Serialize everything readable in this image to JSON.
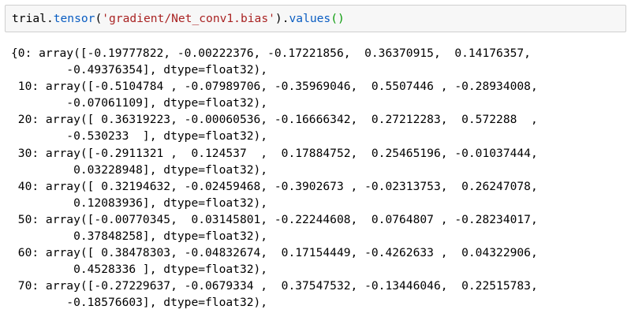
{
  "colors": {
    "page_bg": "#ffffff",
    "cell_bg": "#f7f7f7",
    "cell_border": "#cfcfcf",
    "code_text": "#000000",
    "code_blue": "#0a5dc2",
    "code_string_red": "#a92323",
    "code_paren_green": "#0c9c0c",
    "output_text": "#000000"
  },
  "code_cell": {
    "full_text": "trial.tensor('gradient/Net_conv1.bias').values()",
    "tokens": [
      {
        "text": "trial",
        "type": "variable"
      },
      {
        "text": ".",
        "type": "punctuation"
      },
      {
        "text": "tensor",
        "type": "function"
      },
      {
        "text": "(",
        "type": "punctuation"
      },
      {
        "text": "'gradient/Net_conv1.bias'",
        "type": "string"
      },
      {
        "text": ")",
        "type": "punctuation"
      },
      {
        "text": ".",
        "type": "punctuation"
      },
      {
        "text": "values",
        "type": "function"
      },
      {
        "text": "()",
        "type": "call-parens"
      }
    ]
  },
  "output": {
    "lines": [
      "{0: array([-0.19777822, -0.00222376, -0.17221856,  0.36370915,  0.14176357,",
      "        -0.49376354], dtype=float32),",
      " 10: array([-0.5104784 , -0.07989706, -0.35969046,  0.5507446 , -0.28934008,",
      "        -0.07061109], dtype=float32),",
      " 20: array([ 0.36319223, -0.00060536, -0.16666342,  0.27212283,  0.572288  ,",
      "        -0.530233  ], dtype=float32),",
      " 30: array([-0.2911321 ,  0.124537  ,  0.17884752,  0.25465196, -0.01037444,",
      "         0.03228948], dtype=float32),",
      " 40: array([ 0.32194632, -0.02459468, -0.3902673 , -0.02313753,  0.26247078,",
      "         0.12083936], dtype=float32),",
      " 50: array([-0.00770345,  0.03145801, -0.22244608,  0.0764807 , -0.28234017,",
      "         0.37848258], dtype=float32),",
      " 60: array([ 0.38478303, -0.04832674,  0.17154449, -0.4262633 ,  0.04322906,",
      "         0.4528336 ], dtype=float32),",
      " 70: array([-0.27229637, -0.0679334 ,  0.37547532, -0.13446046,  0.22515783,",
      "        -0.18576603], dtype=float32),"
    ]
  }
}
